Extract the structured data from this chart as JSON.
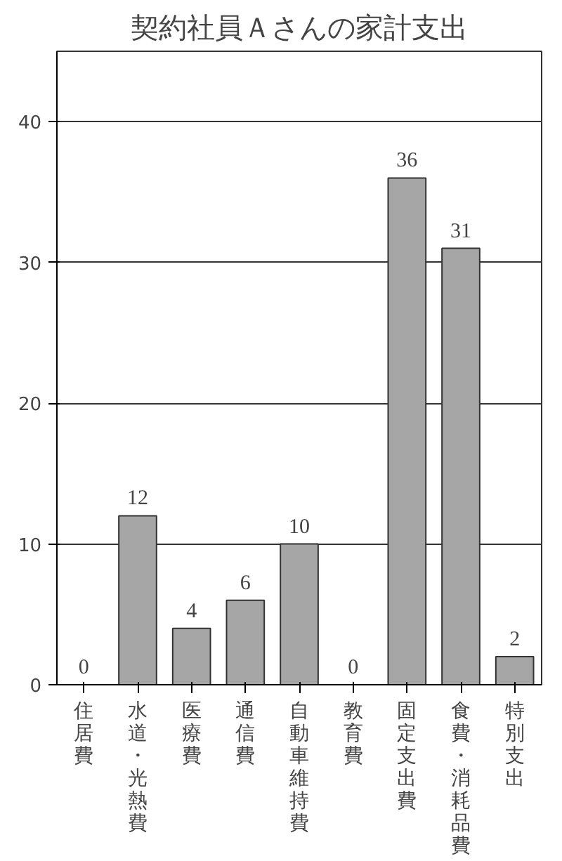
{
  "chart_data": {
    "type": "bar",
    "title": "契約社員Ａさんの家計支出",
    "categories": [
      "住居費",
      "水道・光熱費",
      "医療費",
      "通信費",
      "自動車維持費",
      "教育費",
      "固定支出費",
      "食費・消耗品費",
      "特別支出"
    ],
    "values": [
      0,
      12,
      4,
      6,
      10,
      0,
      36,
      31,
      2
    ],
    "color": "#a6a6a6",
    "ylim": [
      0,
      45
    ],
    "yticks": [
      0,
      10,
      20,
      30,
      40
    ],
    "grid": "y",
    "data_labels": true
  }
}
